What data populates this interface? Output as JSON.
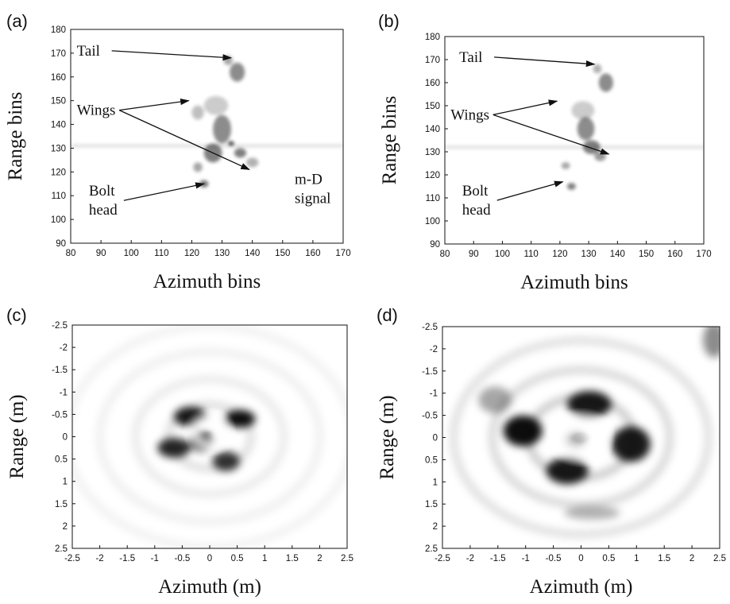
{
  "chart_data": [
    {
      "panel": "(a)",
      "type": "heatmap",
      "xlabel": "Azimuth bins",
      "ylabel": "Range bins",
      "xlim": [
        80,
        170
      ],
      "ylim": [
        90,
        180
      ],
      "xticks": [
        "80",
        "90",
        "100",
        "110",
        "120",
        "130",
        "140",
        "150",
        "160",
        "170"
      ],
      "yticks": [
        "90",
        "100",
        "110",
        "120",
        "130",
        "140",
        "150",
        "160",
        "170",
        "180"
      ],
      "y_reversed": false,
      "annotations": [
        {
          "text": "Tail",
          "x": 82,
          "y": 169,
          "arrows": [
            [
              133,
              168
            ]
          ]
        },
        {
          "text": "Wings",
          "x": 82,
          "y": 144,
          "arrows": [
            [
              119,
              150
            ],
            [
              139,
              121
            ]
          ]
        },
        {
          "text": "Bolt\nhead",
          "x": 86,
          "y": 110,
          "arrows": [
            [
              124,
              115
            ]
          ]
        },
        {
          "text": "m-D\nsignal",
          "x": 154,
          "y": 115,
          "arrows": []
        }
      ],
      "blobs": [
        [
          135,
          162,
          2.5,
          4,
          0.45
        ],
        [
          132,
          167,
          1.5,
          2,
          0.35
        ],
        [
          130,
          138,
          3,
          6,
          0.45
        ],
        [
          127,
          128,
          3,
          4,
          0.5
        ],
        [
          136,
          128,
          2,
          2,
          0.5
        ],
        [
          124,
          115,
          1.5,
          1.5,
          0.55
        ],
        [
          122,
          122,
          1.5,
          2,
          0.35
        ],
        [
          128,
          148,
          4,
          4,
          0.2
        ],
        [
          133,
          132,
          1,
          1,
          0.7
        ],
        [
          122,
          145,
          2,
          3,
          0.25
        ],
        [
          140,
          124,
          2,
          2,
          0.3
        ]
      ],
      "streak_y": 131
    },
    {
      "panel": "(b)",
      "type": "heatmap",
      "xlabel": "Azimuth bins",
      "ylabel": "Range bins",
      "xlim": [
        80,
        170
      ],
      "ylim": [
        90,
        180
      ],
      "xticks": [
        "80",
        "90",
        "100",
        "110",
        "120",
        "130",
        "140",
        "150",
        "160",
        "170"
      ],
      "yticks": [
        "90",
        "100",
        "110",
        "120",
        "130",
        "140",
        "150",
        "160",
        "170",
        "180"
      ],
      "y_reversed": false,
      "annotations": [
        {
          "text": "Tail",
          "x": 85,
          "y": 169,
          "arrows": [
            [
              132,
              168
            ]
          ]
        },
        {
          "text": "Wings",
          "x": 82,
          "y": 144,
          "arrows": [
            [
              119,
              152
            ],
            [
              137,
              129
            ]
          ]
        },
        {
          "text": "Bolt\nhead",
          "x": 86,
          "y": 111,
          "arrows": [
            [
              121,
              117
            ]
          ]
        }
      ],
      "blobs": [
        [
          136,
          160,
          2.5,
          4,
          0.45
        ],
        [
          133,
          166,
          1.5,
          2,
          0.3
        ],
        [
          129,
          140,
          3,
          5,
          0.45
        ],
        [
          131,
          132,
          3,
          3,
          0.5
        ],
        [
          124,
          115,
          1.5,
          1.5,
          0.5
        ],
        [
          122,
          124,
          1.5,
          1.5,
          0.35
        ],
        [
          128,
          148,
          4,
          4,
          0.2
        ],
        [
          134,
          128,
          2,
          2,
          0.4
        ]
      ],
      "streak_y": 132
    },
    {
      "panel": "(c)",
      "type": "heatmap",
      "xlabel": "Azimuth (m)",
      "ylabel": "Range (m)",
      "xlim": [
        -2.5,
        2.5
      ],
      "ylim": [
        -2.5,
        2.5
      ],
      "xticks": [
        "-2.5",
        "-2",
        "-1.5",
        "-1",
        "-0.5",
        "0",
        "0.5",
        "1",
        "1.5",
        "2",
        "2.5"
      ],
      "yticks": [
        "-2.5",
        "-2",
        "-1.5",
        "-1",
        "-0.5",
        "0",
        "0.5",
        "1",
        "1.5",
        "2",
        "2.5"
      ],
      "y_reversed": true,
      "blobs": [
        [
          -0.35,
          -0.45,
          0.3,
          0.22,
          0.9
        ],
        [
          0.55,
          -0.4,
          0.28,
          0.2,
          0.95
        ],
        [
          -0.15,
          0.1,
          0.22,
          0.22,
          0.9
        ],
        [
          -0.65,
          0.25,
          0.3,
          0.22,
          0.85
        ],
        [
          0.3,
          0.55,
          0.25,
          0.22,
          0.8
        ]
      ],
      "ring": {
        "cx": 0.0,
        "cy": -0.1,
        "r": 0.28,
        "w": 0.08
      },
      "rings": [
        [
          0.75,
          0.12
        ],
        [
          1.35,
          0.08
        ],
        [
          2.0,
          0.06
        ],
        [
          2.6,
          0.05
        ]
      ]
    },
    {
      "panel": "(d)",
      "type": "heatmap",
      "xlabel": "Azimuth (m)",
      "ylabel": "Range (m)",
      "xlim": [
        -2.5,
        2.5
      ],
      "ylim": [
        -2.5,
        2.5
      ],
      "xticks": [
        "-2.5",
        "-2",
        "-1.5",
        "-1",
        "-0.5",
        "0",
        "0.5",
        "1",
        "1.5",
        "2",
        "2.5"
      ],
      "yticks": [
        "-2.5",
        "-2",
        "-1.5",
        "-1",
        "-0.5",
        "0",
        "0.5",
        "1",
        "1.5",
        "2",
        "2.5"
      ],
      "y_reversed": true,
      "blobs": [
        [
          0.15,
          -0.75,
          0.4,
          0.3,
          0.9
        ],
        [
          -1.05,
          -0.15,
          0.35,
          0.35,
          0.95
        ],
        [
          0.9,
          0.15,
          0.35,
          0.4,
          0.9
        ],
        [
          -0.25,
          0.75,
          0.38,
          0.3,
          0.9
        ],
        [
          -1.55,
          -0.85,
          0.3,
          0.3,
          0.35
        ],
        [
          -0.1,
          0.05,
          0.2,
          0.2,
          0.3
        ],
        [
          0.2,
          1.7,
          0.5,
          0.15,
          0.3
        ],
        [
          2.4,
          -2.2,
          0.2,
          0.4,
          0.45
        ]
      ],
      "ring": {
        "cx": 0.0,
        "cy": 0.0,
        "r": 0.4,
        "w": 0.1
      },
      "rings": [
        [
          0.95,
          0.2
        ],
        [
          1.6,
          0.15
        ],
        [
          2.3,
          0.12
        ]
      ]
    }
  ]
}
